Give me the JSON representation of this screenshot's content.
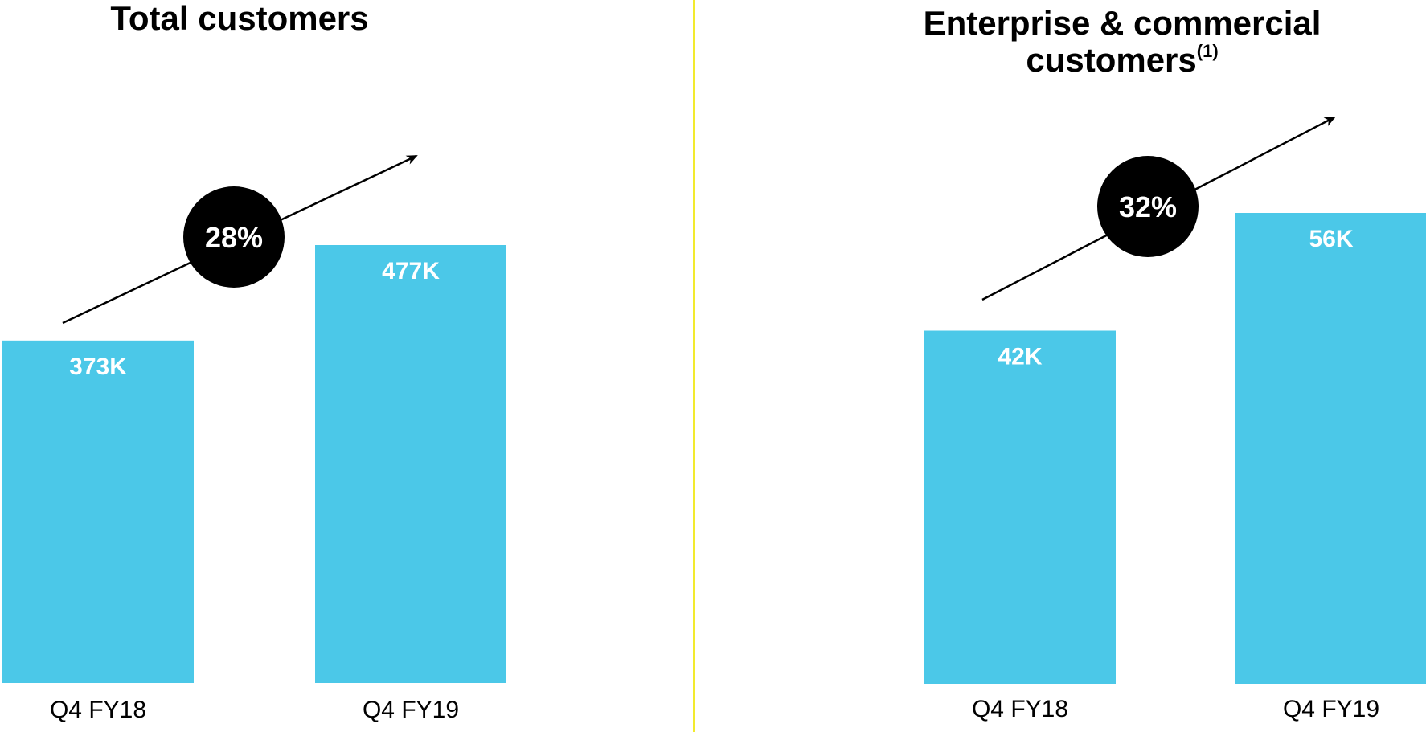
{
  "chart_data": [
    {
      "type": "bar",
      "title": "Total customers",
      "title_superscript": "",
      "categories": [
        "Q4 FY18",
        "Q4 FY19"
      ],
      "values": [
        373,
        477
      ],
      "value_labels": [
        "373K",
        "477K"
      ],
      "growth_label": "28%",
      "ylim": [
        0,
        477
      ],
      "bar_color": "#4bc8e8",
      "badge_color": "#000000",
      "xlabel": "",
      "ylabel": "",
      "grid": false
    },
    {
      "type": "bar",
      "title": "Enterprise & commercial customers",
      "title_superscript": "(1)",
      "categories": [
        "Q4 FY18",
        "Q4 FY19"
      ],
      "values": [
        42,
        56
      ],
      "value_labels": [
        "42K",
        "56K"
      ],
      "growth_label": "32%",
      "ylim": [
        0,
        56
      ],
      "bar_color": "#4bc8e8",
      "badge_color": "#000000",
      "xlabel": "",
      "ylabel": "",
      "grid": false
    }
  ],
  "divider_color": "#f2ea2e"
}
